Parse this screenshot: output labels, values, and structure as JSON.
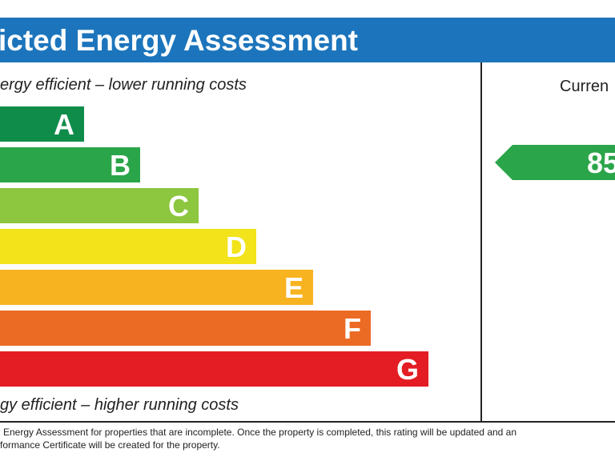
{
  "header": {
    "title": "icted Energy Assessment"
  },
  "scale": {
    "top_note": "ergy efficient – lower running costs",
    "bottom_note": "gy efficient – higher running costs",
    "bands": [
      "A",
      "B",
      "C",
      "D",
      "E",
      "F",
      "G"
    ]
  },
  "current": {
    "label": "Curren",
    "rating": "85"
  },
  "footer": {
    "lines": [
      "Energy Assessment for properties that are incomplete. Once the property is completed, this rating will be updated and an",
      "formance Certificate will be created for the property."
    ]
  }
}
